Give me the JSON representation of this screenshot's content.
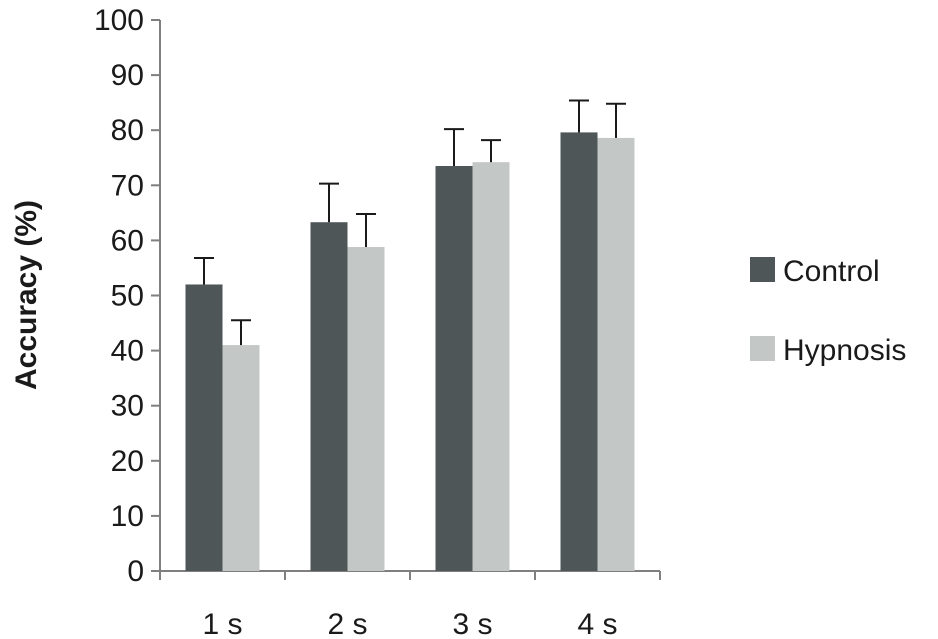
{
  "chart_data": {
    "type": "bar",
    "title": "",
    "xlabel": "",
    "ylabel": "Accuracy (%)",
    "ylim": [
      0,
      100
    ],
    "yticks": [
      0,
      10,
      20,
      30,
      40,
      50,
      60,
      70,
      80,
      90,
      100
    ],
    "categories": [
      "1 s",
      "2 s",
      "3 s",
      "4 s"
    ],
    "series": [
      {
        "name": "Control",
        "color": "#4f5658",
        "values": [
          52,
          63.3,
          73.5,
          79.6
        ],
        "errors": [
          4.8,
          7,
          6.7,
          5.8
        ]
      },
      {
        "name": "Hypnosis",
        "color": "#c3c8c6",
        "values": [
          41,
          58.8,
          74.2,
          78.6
        ],
        "errors": [
          4.5,
          6,
          4,
          6.2
        ]
      }
    ],
    "legend_position": "right",
    "grid": false,
    "error_bars": "upper"
  }
}
